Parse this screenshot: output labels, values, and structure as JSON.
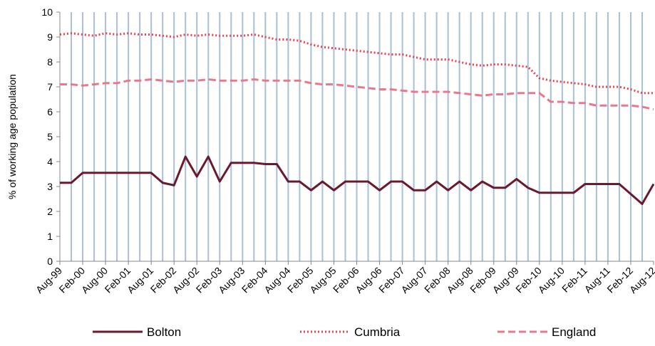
{
  "chart_data": {
    "type": "line",
    "title": "",
    "xlabel": "",
    "ylabel": "% of working age population",
    "ylim": [
      0,
      10
    ],
    "yticks": [
      0,
      1,
      2,
      3,
      4,
      5,
      6,
      7,
      8,
      9,
      10
    ],
    "grid": "vertical",
    "legend": "bottom",
    "x": [
      "Aug-99",
      "Nov-99",
      "Feb-00",
      "May-00",
      "Aug-00",
      "Nov-00",
      "Feb-01",
      "May-01",
      "Aug-01",
      "Nov-01",
      "Feb-02",
      "May-02",
      "Aug-02",
      "Nov-02",
      "Feb-03",
      "May-03",
      "Aug-03",
      "Nov-03",
      "Feb-04",
      "May-04",
      "Aug-04",
      "Nov-04",
      "Feb-05",
      "May-05",
      "Aug-05",
      "Nov-05",
      "Feb-06",
      "May-06",
      "Aug-06",
      "Nov-06",
      "Feb-07",
      "May-07",
      "Aug-07",
      "Nov-07",
      "Feb-08",
      "May-08",
      "Aug-08",
      "Nov-08",
      "Feb-09",
      "May-09",
      "Aug-09",
      "Nov-09",
      "Feb-10",
      "May-10",
      "Aug-10",
      "Nov-10",
      "Feb-11",
      "May-11",
      "Aug-11",
      "Nov-11",
      "Feb-12",
      "May-12",
      "Aug-12"
    ],
    "x_tick_labels": [
      "Aug-99",
      "Feb-00",
      "Aug-00",
      "Feb-01",
      "Aug-01",
      "Feb-02",
      "Aug-02",
      "Feb-03",
      "Aug-03",
      "Feb-04",
      "Aug-04",
      "Feb-05",
      "Aug-05",
      "Feb-06",
      "Aug-06",
      "Feb-07",
      "Aug-07",
      "Feb-08",
      "Aug-08",
      "Feb-09",
      "Aug-09",
      "Feb-10",
      "Aug-10",
      "Feb-11",
      "Aug-11",
      "Feb-12",
      "Aug-12"
    ],
    "series": [
      {
        "name": "Bolton",
        "color": "#6b1a2e",
        "style": "solid",
        "values": [
          3.15,
          3.15,
          3.55,
          3.55,
          3.55,
          3.55,
          3.55,
          3.55,
          3.55,
          3.15,
          3.05,
          4.2,
          3.4,
          4.2,
          3.2,
          3.95,
          3.95,
          3.95,
          3.9,
          3.9,
          3.2,
          3.2,
          2.85,
          3.2,
          2.85,
          3.2,
          3.2,
          3.2,
          2.85,
          3.2,
          3.2,
          2.85,
          2.85,
          3.2,
          2.85,
          3.2,
          2.85,
          3.2,
          2.95,
          2.95,
          3.3,
          2.95,
          2.75,
          2.75,
          2.75,
          2.75,
          3.1,
          3.1,
          3.1,
          3.1,
          2.7,
          2.3,
          3.1
        ]
      },
      {
        "name": "Cumbria",
        "color": "#e8424e",
        "style": "dotted",
        "values": [
          9.1,
          9.15,
          9.1,
          9.05,
          9.15,
          9.1,
          9.15,
          9.1,
          9.1,
          9.05,
          9.0,
          9.1,
          9.05,
          9.1,
          9.05,
          9.05,
          9.05,
          9.1,
          9.0,
          8.9,
          8.9,
          8.85,
          8.7,
          8.6,
          8.55,
          8.5,
          8.45,
          8.4,
          8.35,
          8.3,
          8.3,
          8.2,
          8.1,
          8.1,
          8.1,
          8.0,
          7.9,
          7.85,
          7.9,
          7.9,
          7.85,
          7.8,
          7.35,
          7.25,
          7.2,
          7.15,
          7.1,
          7.0,
          7.0,
          7.0,
          6.9,
          6.75,
          6.75
        ]
      },
      {
        "name": "England",
        "color": "#e8788a",
        "style": "dashed",
        "values": [
          7.1,
          7.1,
          7.05,
          7.1,
          7.15,
          7.15,
          7.25,
          7.25,
          7.3,
          7.25,
          7.2,
          7.25,
          7.25,
          7.3,
          7.25,
          7.25,
          7.25,
          7.3,
          7.25,
          7.25,
          7.25,
          7.25,
          7.15,
          7.1,
          7.1,
          7.05,
          7.0,
          6.95,
          6.9,
          6.9,
          6.85,
          6.8,
          6.8,
          6.8,
          6.8,
          6.75,
          6.7,
          6.65,
          6.7,
          6.7,
          6.75,
          6.75,
          6.75,
          6.4,
          6.4,
          6.35,
          6.35,
          6.25,
          6.25,
          6.25,
          6.25,
          6.2,
          6.1
        ]
      }
    ]
  }
}
